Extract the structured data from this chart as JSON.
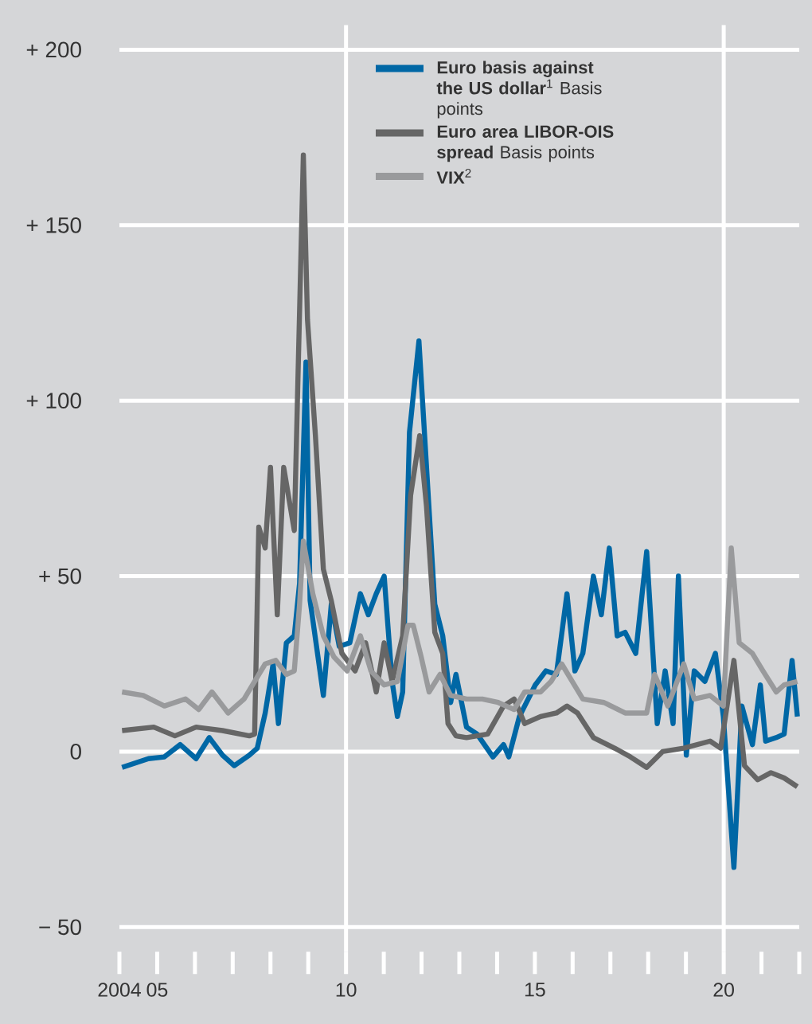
{
  "chart_data": {
    "type": "line",
    "xlim": [
      2004,
      2022
    ],
    "ylim": [
      -57,
      207
    ],
    "xticks": [
      {
        "value": 2004,
        "label": "2004"
      },
      {
        "value": 2005,
        "label": "05"
      },
      {
        "value": 2006,
        "label": null
      },
      {
        "value": 2007,
        "label": null
      },
      {
        "value": 2008,
        "label": null
      },
      {
        "value": 2009,
        "label": null
      },
      {
        "value": 2010,
        "label": "10"
      },
      {
        "value": 2011,
        "label": null
      },
      {
        "value": 2012,
        "label": null
      },
      {
        "value": 2013,
        "label": null
      },
      {
        "value": 2014,
        "label": null
      },
      {
        "value": 2015,
        "label": "15"
      },
      {
        "value": 2016,
        "label": null
      },
      {
        "value": 2017,
        "label": null
      },
      {
        "value": 2018,
        "label": null
      },
      {
        "value": 2019,
        "label": null
      },
      {
        "value": 2020,
        "label": "20"
      },
      {
        "value": 2021,
        "label": null
      },
      {
        "value": 2022,
        "label": null
      }
    ],
    "yticks": [
      {
        "value": -50,
        "label": "−  50"
      },
      {
        "value": 0,
        "label": "0"
      },
      {
        "value": 50,
        "label": "+  50"
      },
      {
        "value": 100,
        "label": "+ 100"
      },
      {
        "value": 150,
        "label": "+ 150"
      },
      {
        "value": 200,
        "label": "+ 200"
      }
    ],
    "grid": "y",
    "legend": "top right",
    "ref_lines": [
      {
        "axis": "x",
        "value": 2010,
        "color": "#ffffff"
      },
      {
        "axis": "x",
        "value": 2020,
        "color": "#ffffff"
      }
    ],
    "series": [
      {
        "name": "**Euro basis against the US dollar**$^{1}$ Basis points",
        "color": "#0067a5",
        "x": [
          2004.07,
          2004.77,
          2005.19,
          2005.61,
          2006.03,
          2006.38,
          2006.73,
          2007.04,
          2007.44,
          2007.65,
          2007.86,
          2008.07,
          2008.21,
          2008.42,
          2008.63,
          2008.77,
          2008.94,
          2009.05,
          2009.4,
          2009.61,
          2009.82,
          2010.1,
          2010.38,
          2010.59,
          2010.8,
          2011.01,
          2011.22,
          2011.36,
          2011.5,
          2011.68,
          2011.93,
          2012.35,
          2012.56,
          2012.77,
          2012.91,
          2013.19,
          2013.47,
          2013.89,
          2014.17,
          2014.31,
          2014.59,
          2015.01,
          2015.29,
          2015.57,
          2015.85,
          2016.06,
          2016.27,
          2016.55,
          2016.76,
          2016.97,
          2017.18,
          2017.39,
          2017.67,
          2017.96,
          2018.24,
          2018.45,
          2018.66,
          2018.8,
          2019.01,
          2019.22,
          2019.5,
          2019.78,
          2019.99,
          2020.27,
          2020.48,
          2020.76,
          2020.97,
          2021.11,
          2021.39,
          2021.6,
          2021.81,
          2021.95
        ],
        "values": [
          -4.5,
          -2,
          -1.5,
          2,
          -2,
          4,
          -1,
          -4,
          -1,
          1,
          11,
          25,
          8,
          31,
          33,
          48,
          111,
          43,
          16,
          42,
          30,
          31,
          45,
          39,
          45,
          50,
          20,
          10,
          17,
          91,
          117,
          42,
          33,
          14,
          22,
          7,
          5,
          -1.5,
          2,
          -1.5,
          10,
          19,
          23,
          22,
          45,
          23,
          28,
          50,
          39,
          58,
          33,
          34,
          28,
          57,
          8,
          23,
          8,
          50,
          -1,
          23,
          20,
          28,
          10,
          -33,
          13,
          2,
          19,
          3,
          4,
          5,
          26,
          10
        ]
      },
      {
        "name": "**Euro area LIBOR-OIS spread** Basis points",
        "color": "#666666",
        "x": [
          2004.07,
          2004.91,
          2005.47,
          2006.03,
          2006.73,
          2007.44,
          2007.58,
          2007.69,
          2007.86,
          2008.0,
          2008.18,
          2008.35,
          2008.63,
          2008.87,
          2008.98,
          2009.19,
          2009.4,
          2009.61,
          2009.89,
          2010.24,
          2010.52,
          2010.8,
          2011.01,
          2011.22,
          2011.5,
          2011.71,
          2011.95,
          2012.13,
          2012.35,
          2012.56,
          2012.7,
          2012.91,
          2013.19,
          2013.75,
          2014.17,
          2014.45,
          2014.73,
          2015.15,
          2015.57,
          2015.85,
          2016.13,
          2016.55,
          2017.11,
          2017.53,
          2017.96,
          2018.38,
          2018.94,
          2019.64,
          2019.92,
          2020.27,
          2020.55,
          2020.9,
          2021.25,
          2021.6,
          2021.95
        ],
        "values": [
          6,
          7,
          4.5,
          7,
          6,
          4.5,
          5,
          64,
          58,
          81,
          39,
          81,
          63,
          170,
          123,
          90,
          52,
          43,
          28,
          23,
          31,
          17,
          31,
          20,
          33,
          73,
          90,
          70,
          34,
          28,
          8,
          4.5,
          4,
          5,
          13,
          15,
          8,
          10,
          11,
          13,
          11,
          4,
          1,
          -1.5,
          -4.5,
          0,
          1,
          3,
          1,
          26,
          -4,
          -8,
          -6,
          -7.5,
          -10
        ]
      },
      {
        "name": "**VIX**$^{2}$",
        "color": "#999a9c",
        "x": [
          2004.07,
          2004.63,
          2005.19,
          2005.75,
          2006.1,
          2006.45,
          2006.88,
          2007.3,
          2007.58,
          2007.86,
          2008.14,
          2008.42,
          2008.63,
          2008.77,
          2008.87,
          2009.12,
          2009.4,
          2009.68,
          2010.03,
          2010.38,
          2010.66,
          2011.01,
          2011.36,
          2011.64,
          2011.78,
          2011.99,
          2012.2,
          2012.49,
          2012.77,
          2013.19,
          2013.61,
          2014.03,
          2014.45,
          2014.73,
          2015.15,
          2015.43,
          2015.71,
          2015.99,
          2016.27,
          2016.83,
          2017.39,
          2017.96,
          2018.17,
          2018.52,
          2018.94,
          2019.22,
          2019.64,
          2019.99,
          2020.2,
          2020.41,
          2020.76,
          2021.04,
          2021.39,
          2021.6,
          2021.95
        ],
        "values": [
          17,
          16,
          13,
          15,
          12,
          17,
          11,
          15,
          20,
          25,
          26,
          22,
          23,
          42,
          60,
          45,
          33,
          27,
          23,
          33,
          23,
          19,
          20,
          36,
          36,
          27,
          17,
          22,
          16,
          15,
          15,
          14,
          12,
          17,
          17,
          20,
          25,
          20,
          15,
          14,
          11,
          11,
          22,
          13,
          25,
          15,
          16,
          13,
          58,
          31,
          28,
          23,
          17,
          19,
          20
        ]
      }
    ]
  }
}
